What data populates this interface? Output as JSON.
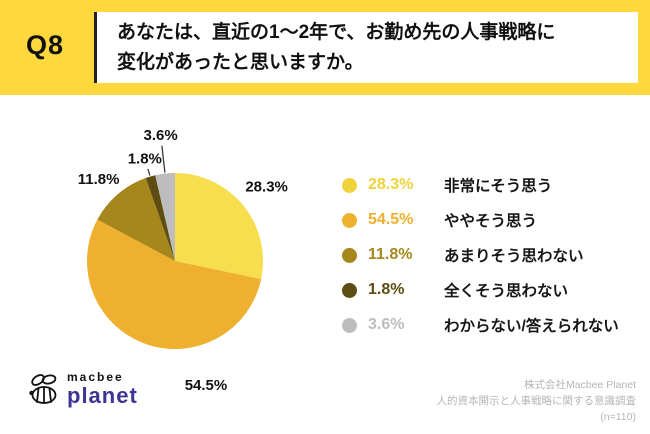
{
  "header": {
    "question_number": "Q8",
    "question_line1": "あなたは、直近の1〜2年で、お勤め先の人事戦略に",
    "question_line2": "変化があったと思いますか。"
  },
  "chart_data": {
    "type": "pie",
    "categories": [
      "非常にそう思う",
      "ややそう思う",
      "あまりそう思わない",
      "全くそう思わない",
      "わからない/答えられない"
    ],
    "values": [
      28.3,
      54.5,
      11.8,
      1.8,
      3.6
    ],
    "labels": [
      "28.3%",
      "54.5%",
      "11.8%",
      "1.8%",
      "3.6%"
    ],
    "colors": [
      "#F6DE4F",
      "#EFB02F",
      "#A5871C",
      "#5E4D13",
      "#BDBDBD"
    ],
    "unit": "%",
    "sample_size": "(n=110)",
    "legend_position": "right"
  },
  "legend": {
    "items": [
      {
        "percent": "28.3%",
        "label": "非常にそう思う",
        "color": "#F0D23C"
      },
      {
        "percent": "54.5%",
        "label": "ややそう思う",
        "color": "#EFB02F"
      },
      {
        "percent": "11.8%",
        "label": "あまりそう思わない",
        "color": "#A5871C"
      },
      {
        "percent": "1.8%",
        "label": "全くそう思わない",
        "color": "#5E4D13"
      },
      {
        "percent": "3.6%",
        "label": "わからない/答えられない",
        "color": "#BDBDBD"
      }
    ]
  },
  "footer": {
    "logo_top": "macbee",
    "logo_bottom": "planet",
    "credit_line1": "株式会社Macbee Planet",
    "credit_line2": "人的資本開示と人事戦略に関する意識調査",
    "credit_line3": "(n=110)"
  }
}
